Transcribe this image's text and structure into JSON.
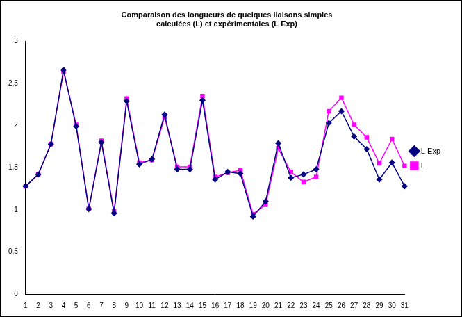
{
  "chart_data": {
    "type": "line",
    "title": [
      "Comparaison des longueurs de quelques liaisons simples",
      "calculées (L) et expérimentales (L Exp)"
    ],
    "categories": [
      "1",
      "2",
      "3",
      "4",
      "5",
      "6",
      "7",
      "8",
      "9",
      "10",
      "11",
      "12",
      "13",
      "14",
      "15",
      "16",
      "17",
      "18",
      "19",
      "20",
      "21",
      "22",
      "23",
      "24",
      "25",
      "26",
      "27",
      "28",
      "29",
      "30",
      "31"
    ],
    "series": [
      {
        "name": "L Exp",
        "color": "#000080",
        "marker": "diamond",
        "line_style": "solid",
        "values": [
          1.28,
          1.42,
          1.78,
          2.66,
          1.99,
          1.01,
          1.8,
          0.96,
          2.29,
          1.54,
          1.6,
          2.13,
          1.48,
          1.48,
          2.3,
          1.36,
          1.45,
          1.43,
          0.92,
          1.1,
          1.79,
          1.38,
          1.42,
          1.48,
          2.03,
          2.17,
          1.87,
          1.72,
          1.36,
          1.56,
          1.28
        ]
      },
      {
        "name": "L",
        "color": "#ff00ff",
        "marker": "square",
        "line_style": "solid",
        "values": [
          1.28,
          1.42,
          1.78,
          2.64,
          2.01,
          1.01,
          1.82,
          0.98,
          2.32,
          1.56,
          1.59,
          2.1,
          1.51,
          1.51,
          2.35,
          1.39,
          1.44,
          1.47,
          0.95,
          1.06,
          1.73,
          1.45,
          1.33,
          1.39,
          2.17,
          2.33,
          2.01,
          1.86,
          1.55,
          1.84,
          1.52
        ]
      }
    ],
    "ylim": [
      0,
      3
    ],
    "yticks": [
      0,
      {
        "value": 0.5,
        "label": "0,5"
      },
      1,
      {
        "value": 1.5,
        "label": "1,5"
      },
      2,
      {
        "value": 2.5,
        "label": "2,5"
      },
      3
    ],
    "grid": false,
    "legend": "right"
  }
}
